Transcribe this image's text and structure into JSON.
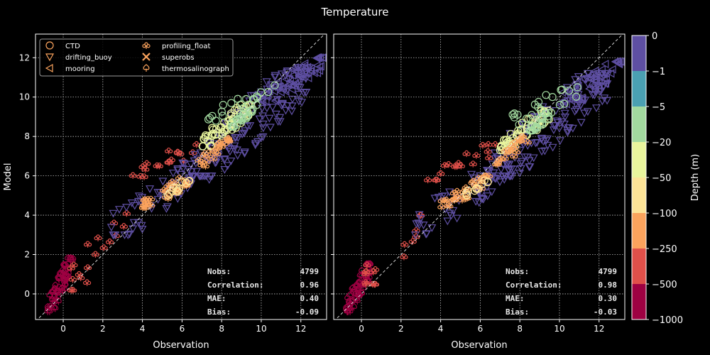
{
  "chart_data": {
    "type": "scatter",
    "title": "Temperature",
    "xlim": [
      -1.4,
      13.3
    ],
    "ylim": [
      -1.3,
      13.2
    ],
    "xticks": [
      0,
      2,
      4,
      6,
      8,
      10,
      12
    ],
    "yticks": [
      0,
      2,
      4,
      6,
      8,
      10,
      12
    ],
    "grid": true,
    "diagonal_reference_line": true,
    "legend_location": "upper-left",
    "legend": [
      {
        "label": "CTD",
        "marker": "circle"
      },
      {
        "label": "drifting_buoy",
        "marker": "triangle-down"
      },
      {
        "label": "mooring",
        "marker": "triangle-left"
      },
      {
        "label": "profiling_float",
        "marker": "club"
      },
      {
        "label": "superobs",
        "marker": "x-cross"
      },
      {
        "label": "thermosalinograph",
        "marker": "spade"
      }
    ],
    "colorbar": {
      "label": "Depth (m)",
      "tick_labels": [
        "0",
        "−1",
        "−5",
        "−20",
        "−50",
        "−100",
        "−250",
        "−500",
        "−1000"
      ],
      "colors": [
        "#5e4fa2",
        "#4aa0b2",
        "#a2d99f",
        "#e9f59d",
        "#fde397",
        "#fba35d",
        "#e0504a",
        "#9e0142"
      ]
    },
    "subplots": [
      {
        "xlabel": "Observation",
        "ylabel": "Model",
        "stats": [
          {
            "label": "Nobs:",
            "value": "4799"
          },
          {
            "label": "Correlation:",
            "value": "0.96"
          },
          {
            "label": "MAE:",
            "value": "0.40"
          },
          {
            "label": "Bias:",
            "value": "-0.09"
          }
        ],
        "clusters": [
          {
            "marker": "spade",
            "color": "#9e0142",
            "x": [
              -0.8,
              0.5
            ],
            "y": [
              -0.9,
              1.8
            ],
            "count": 70
          },
          {
            "marker": "club",
            "color": "#e0504a",
            "x": [
              0.1,
              3.3
            ],
            "y": [
              0.2,
              4.1
            ],
            "count": 18
          },
          {
            "marker": "club",
            "color": "#e0504a",
            "x": [
              3.0,
              7.0
            ],
            "y": [
              5.8,
              7.6
            ],
            "count": 18
          },
          {
            "marker": "triangle-down",
            "color": "#5e4fa2",
            "x": [
              2.3,
              7.5
            ],
            "y": [
              3.0,
              6.8
            ],
            "count": 60
          },
          {
            "marker": "triangle-down",
            "color": "#5e4fa2",
            "x": [
              6.5,
              12.5
            ],
            "y": [
              6.0,
              11.5
            ],
            "count": 140
          },
          {
            "marker": "triangle-left",
            "color": "#5e4fa2",
            "x": [
              10.0,
              13.2
            ],
            "y": [
              9.8,
              12.0
            ],
            "count": 60
          },
          {
            "marker": "club",
            "color": "#fba35d",
            "x": [
              4.0,
              6.5
            ],
            "y": [
              4.4,
              6.0
            ],
            "count": 35
          },
          {
            "marker": "circle",
            "color": "#fde397",
            "x": [
              5.2,
              6.4
            ],
            "y": [
              5.0,
              5.8
            ],
            "count": 12
          },
          {
            "marker": "circle",
            "color": "#e9f59d",
            "x": [
              7.0,
              9.5
            ],
            "y": [
              7.5,
              9.6
            ],
            "count": 60
          },
          {
            "marker": "circle",
            "color": "#a2d99f",
            "x": [
              7.3,
              11.0
            ],
            "y": [
              8.8,
              10.6
            ],
            "count": 20
          },
          {
            "marker": "club",
            "color": "#fba35d",
            "x": [
              6.8,
              8.5
            ],
            "y": [
              6.5,
              8.0
            ],
            "count": 25
          },
          {
            "marker": "circle",
            "color": "#a2d99f",
            "x": [
              8.5,
              9.6
            ],
            "y": [
              8.5,
              9.4
            ],
            "count": 25
          }
        ]
      },
      {
        "xlabel": "Observation",
        "ylabel": "",
        "stats": [
          {
            "label": "Nobs:",
            "value": "4799"
          },
          {
            "label": "Correlation:",
            "value": "0.98"
          },
          {
            "label": "MAE:",
            "value": "0.30"
          },
          {
            "label": "Bias:",
            "value": "-0.03"
          }
        ],
        "clusters": [
          {
            "marker": "spade",
            "color": "#9e0142",
            "x": [
              -0.8,
              0.5
            ],
            "y": [
              -0.9,
              1.5
            ],
            "count": 70
          },
          {
            "marker": "club",
            "color": "#e0504a",
            "x": [
              0.1,
              3.3
            ],
            "y": [
              0.5,
              4.0
            ],
            "count": 18
          },
          {
            "marker": "club",
            "color": "#e0504a",
            "x": [
              3.3,
              7.0
            ],
            "y": [
              5.8,
              7.6
            ],
            "count": 18
          },
          {
            "marker": "triangle-down",
            "color": "#5e4fa2",
            "x": [
              2.3,
              7.5
            ],
            "y": [
              3.0,
              6.6
            ],
            "count": 60
          },
          {
            "marker": "triangle-down",
            "color": "#5e4fa2",
            "x": [
              6.5,
              12.5
            ],
            "y": [
              6.0,
              11.2
            ],
            "count": 140
          },
          {
            "marker": "triangle-left",
            "color": "#5e4fa2",
            "x": [
              10.0,
              13.2
            ],
            "y": [
              9.6,
              11.8
            ],
            "count": 60
          },
          {
            "marker": "club",
            "color": "#fba35d",
            "x": [
              4.0,
              6.5
            ],
            "y": [
              4.4,
              6.0
            ],
            "count": 35
          },
          {
            "marker": "circle",
            "color": "#fde397",
            "x": [
              5.2,
              6.4
            ],
            "y": [
              5.0,
              5.8
            ],
            "count": 12
          },
          {
            "marker": "circle",
            "color": "#e9f59d",
            "x": [
              7.0,
              9.5
            ],
            "y": [
              7.3,
              9.3
            ],
            "count": 60
          },
          {
            "marker": "circle",
            "color": "#a2d99f",
            "x": [
              7.3,
              11.0
            ],
            "y": [
              8.6,
              10.5
            ],
            "count": 20
          },
          {
            "marker": "club",
            "color": "#fba35d",
            "x": [
              6.8,
              8.5
            ],
            "y": [
              6.6,
              8.0
            ],
            "count": 25
          },
          {
            "marker": "circle",
            "color": "#a2d99f",
            "x": [
              8.5,
              9.6
            ],
            "y": [
              8.3,
              9.2
            ],
            "count": 25
          }
        ]
      }
    ]
  }
}
